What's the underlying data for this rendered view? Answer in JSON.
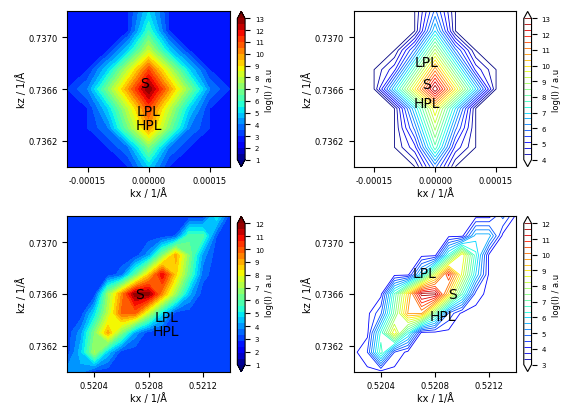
{
  "chart_data": [
    {
      "type": "contour_filled",
      "x_label": "kx / 1/Å",
      "y_label": "kz / 1/Å",
      "x": [
        -0.0002,
        -0.00015,
        -0.0001,
        -5e-05,
        0,
        5e-05,
        0.0001,
        0.00015,
        0.0002
      ],
      "y": [
        0.736,
        0.73615,
        0.7363,
        0.73645,
        0.7366,
        0.73675,
        0.7369,
        0.73705,
        0.7372
      ],
      "cells": [
        [
          3,
          3,
          3,
          3,
          5,
          3,
          3,
          3,
          3
        ],
        [
          3,
          3,
          3,
          4,
          7,
          4,
          3,
          3,
          3
        ],
        [
          3,
          3,
          4,
          7,
          10,
          7,
          4,
          3,
          3
        ],
        [
          3,
          3,
          5,
          8,
          11,
          8,
          5,
          3,
          3
        ],
        [
          3,
          4,
          7,
          10,
          13,
          10,
          7,
          4,
          3
        ],
        [
          3,
          3,
          5,
          8,
          11,
          8,
          5,
          3,
          3
        ],
        [
          3,
          3,
          3,
          5,
          8,
          5,
          3,
          3,
          3
        ],
        [
          3,
          3,
          3,
          3,
          6,
          3,
          3,
          3,
          3
        ],
        [
          3,
          3,
          3,
          3,
          5,
          3,
          3,
          3,
          3
        ]
      ],
      "xlim": [
        -0.0002,
        0.0002
      ],
      "xticks": [
        {
          "value": -0.00015,
          "label": "-0.00015"
        },
        {
          "value": 0,
          "label": "0.00000"
        },
        0.00015
      ],
      "ylim": [
        0.736,
        0.7372
      ],
      "yticks": [
        0.7362,
        0.7366,
        {
          "value": 0.737,
          "label": "0.7370"
        }
      ],
      "colorbar_label": "log(I) / a.u",
      "colorbar_range": [
        1,
        13
      ],
      "colorbar_ticks": [
        1,
        2,
        3,
        4,
        5,
        6,
        7,
        8,
        9,
        10,
        11,
        12,
        13
      ],
      "annotations": [
        {
          "text": "S",
          "x": -1e-05,
          "y": 0.73665
        },
        {
          "text": "LPL",
          "x": 0,
          "y": 0.73643
        },
        {
          "text": "HPL",
          "x": 0,
          "y": 0.73632
        }
      ]
    },
    {
      "type": "contour",
      "x_label": "kx / 1/Å",
      "y_label": "kz / 1/Å",
      "x": [
        -0.0002,
        -0.00015,
        -0.0001,
        -5e-05,
        0,
        5e-05,
        0.0001,
        0.00015,
        0.0002
      ],
      "y": [
        0.736,
        0.73615,
        0.7363,
        0.73645,
        0.7366,
        0.73675,
        0.7369,
        0.73705,
        0.7372
      ],
      "cells": [
        [
          4,
          4,
          4,
          4,
          6,
          4,
          4,
          4,
          4
        ],
        [
          4,
          4,
          4,
          5,
          8,
          5,
          4,
          4,
          4
        ],
        [
          4,
          4,
          4,
          6,
          9,
          6,
          4,
          4,
          4
        ],
        [
          4,
          4,
          4,
          7,
          10,
          7,
          4,
          4,
          4
        ],
        [
          4,
          4,
          7,
          10,
          13,
          10,
          7,
          4,
          4
        ],
        [
          4,
          4,
          5,
          8,
          11,
          8,
          5,
          4,
          4
        ],
        [
          4,
          4,
          4,
          6,
          9,
          6,
          4,
          4,
          4
        ],
        [
          4,
          4,
          4,
          4,
          7,
          4,
          4,
          4,
          4
        ],
        [
          4,
          4,
          4,
          4,
          6,
          4,
          4,
          4,
          4
        ]
      ],
      "xlim": [
        -0.0002,
        0.0002
      ],
      "xticks": [
        {
          "value": -0.00015,
          "label": "-0.00015"
        },
        {
          "value": 0,
          "label": "0.00000"
        },
        0.00015
      ],
      "ylim": [
        0.736,
        0.7372
      ],
      "yticks": [
        0.7362,
        0.7366,
        {
          "value": 0.737,
          "label": "0.7370"
        }
      ],
      "colorbar_label": "log(I) / a.u",
      "colorbar_range": [
        4,
        13
      ],
      "colorbar_ticks": [
        4,
        5,
        6,
        7,
        8,
        9,
        10,
        11,
        12,
        13
      ],
      "annotations": [
        {
          "text": "LPL",
          "x": -2e-05,
          "y": 0.73681
        },
        {
          "text": "S",
          "x": -2e-05,
          "y": 0.73664
        },
        {
          "text": "HPL",
          "x": -2e-05,
          "y": 0.73649
        }
      ]
    },
    {
      "type": "contour_filled",
      "x_label": "kx / 1/Å",
      "y_label": "kz / 1/Å",
      "x": [
        0.5202,
        0.5203,
        0.5204,
        0.5205,
        0.5206,
        0.5207,
        0.5208,
        0.5209,
        0.521,
        0.5211,
        0.5212,
        0.5213,
        0.5214
      ],
      "y": [
        0.736,
        0.73615,
        0.7363,
        0.73645,
        0.7366,
        0.73675,
        0.7369,
        0.73705,
        0.7372
      ],
      "cells": [
        [
          4,
          4,
          3,
          3,
          3,
          3,
          3,
          3,
          3,
          3,
          3,
          3,
          3
        ],
        [
          3,
          4.5,
          7,
          4.5,
          3,
          3,
          3,
          3,
          3,
          3,
          3,
          3,
          3
        ],
        [
          3,
          4,
          6.5,
          9,
          6.5,
          4,
          3,
          3,
          3,
          3,
          3,
          3,
          3
        ],
        [
          3,
          3,
          4.8,
          7.3,
          9.8,
          9.8,
          7.3,
          4.8,
          3,
          3,
          3,
          3,
          3
        ],
        [
          3,
          3,
          3,
          6.8,
          9.3,
          11.8,
          11.8,
          9.3,
          6.8,
          4.3,
          3,
          3,
          3
        ],
        [
          3,
          3,
          3,
          3,
          3.5,
          6,
          8.5,
          11,
          8.5,
          6,
          3.5,
          3,
          3
        ],
        [
          3,
          3,
          3,
          3,
          3,
          3,
          4,
          6.5,
          9,
          6.5,
          4,
          3,
          3
        ],
        [
          3,
          3,
          3,
          3,
          3,
          3,
          3,
          3,
          3.3,
          5.8,
          5.8,
          3.3,
          3
        ],
        [
          3,
          3,
          3,
          3,
          3,
          3,
          3,
          3,
          3,
          3,
          3,
          5,
          3
        ]
      ],
      "xlim": [
        0.5202,
        0.5214
      ],
      "xticks": [
        0.5204,
        0.5208,
        0.5212
      ],
      "ylim": [
        0.736,
        0.7372
      ],
      "yticks": [
        0.7362,
        0.7366,
        {
          "value": 0.737,
          "label": "0.7370"
        }
      ],
      "colorbar_label": "log(I) / a.u",
      "colorbar_range": [
        1,
        12
      ],
      "colorbar_ticks": [
        1,
        2,
        3,
        4,
        5,
        6,
        7,
        8,
        9,
        10,
        11,
        12
      ],
      "annotations": [
        {
          "text": "S",
          "x": 0.52073,
          "y": 0.7366
        },
        {
          "text": "LPL",
          "x": 0.52093,
          "y": 0.73642
        },
        {
          "text": "HPL",
          "x": 0.52093,
          "y": 0.73631
        }
      ]
    },
    {
      "type": "contour",
      "x_label": "kx / 1/Å",
      "y_label": "kz / 1/Å",
      "x": [
        0.5202,
        0.5203,
        0.5204,
        0.5205,
        0.5206,
        0.5207,
        0.5208,
        0.5209,
        0.521,
        0.5211,
        0.5212,
        0.5213,
        0.5214
      ],
      "y": [
        0.736,
        0.73615,
        0.7363,
        0.73645,
        0.7366,
        0.73675,
        0.7369,
        0.73705,
        0.7372
      ],
      "cells": [
        [
          4,
          4,
          4,
          4,
          4,
          4,
          4,
          4,
          4,
          4,
          4,
          4,
          4
        ],
        [
          4,
          4.5,
          7,
          4.5,
          4,
          4,
          4,
          4,
          4,
          4,
          4,
          4,
          4
        ],
        [
          4,
          4,
          6.5,
          9,
          6.5,
          4,
          4,
          4,
          4,
          4,
          4,
          4,
          4
        ],
        [
          4,
          4,
          4.8,
          7.3,
          9.8,
          9.8,
          7.3,
          4.8,
          4,
          4,
          4,
          4,
          4
        ],
        [
          4,
          4,
          4,
          6.8,
          9.3,
          11.8,
          11.8,
          9.3,
          6.8,
          4.3,
          4,
          4,
          4
        ],
        [
          4,
          4,
          4,
          4,
          4,
          6,
          8.5,
          11,
          8.5,
          6,
          4,
          4,
          4
        ],
        [
          4,
          4,
          4,
          4,
          4,
          4,
          4,
          6.5,
          9,
          6.5,
          4,
          4,
          4
        ],
        [
          4,
          4,
          4,
          4,
          4,
          4,
          4,
          4,
          4,
          5.8,
          5.8,
          4,
          4
        ],
        [
          4,
          4,
          4,
          4,
          4,
          4,
          4,
          4,
          4,
          4,
          4,
          5,
          4
        ]
      ],
      "xlim": [
        0.5202,
        0.5214
      ],
      "xticks": [
        0.5204,
        0.5208,
        0.5212
      ],
      "ylim": [
        0.736,
        0.7372
      ],
      "yticks": [
        0.7362,
        0.7366,
        {
          "value": 0.737,
          "label": "0.7370"
        }
      ],
      "colorbar_label": "log(I) / a.u",
      "colorbar_range": [
        3,
        12
      ],
      "colorbar_ticks": [
        3,
        4,
        5,
        6,
        7,
        8,
        9,
        10,
        11,
        12
      ],
      "annotations": [
        {
          "text": "LPL",
          "x": 0.52072,
          "y": 0.73676
        },
        {
          "text": "S",
          "x": 0.52093,
          "y": 0.7366
        },
        {
          "text": "HPL",
          "x": 0.52086,
          "y": 0.73643
        }
      ]
    }
  ]
}
